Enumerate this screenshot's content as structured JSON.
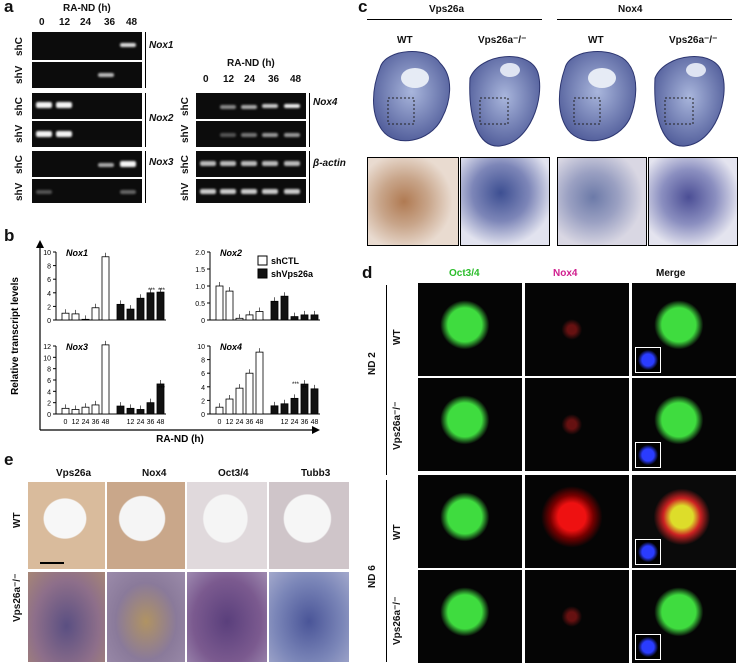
{
  "panel_a": {
    "label": "a",
    "condition": "RA-ND (h)",
    "timepoints": [
      "0",
      "12",
      "24",
      "36",
      "48"
    ],
    "rows": [
      "shC",
      "shV"
    ],
    "genes_left": [
      "Nox1",
      "Nox2",
      "Nox3"
    ],
    "genes_right": [
      "Nox4",
      "β-actin"
    ]
  },
  "panel_b": {
    "label": "b",
    "ylabel": "Relative transcript levels",
    "xlabel": "RA-ND (h)",
    "legend": [
      "shCTL",
      "shVps26a"
    ],
    "sig": "***",
    "sig2": "**"
  },
  "chart_data": [
    {
      "type": "bar",
      "title": "Nox1",
      "categories": [
        "0",
        "12",
        "24",
        "36",
        "48"
      ],
      "ylim": [
        0,
        10
      ],
      "yticks": [
        "0",
        "2",
        "4",
        "6",
        "8",
        "10"
      ],
      "series": [
        {
          "name": "shCTL",
          "values": [
            1.0,
            0.9,
            0.1,
            1.8,
            9.3
          ]
        },
        {
          "name": "shVps26a",
          "values": [
            2.3,
            1.6,
            3.2,
            4.0,
            4.1
          ]
        }
      ]
    },
    {
      "type": "bar",
      "title": "Nox2",
      "categories": [
        "0",
        "12",
        "24",
        "36",
        "48"
      ],
      "ylim": [
        0,
        2.0
      ],
      "yticks": [
        "0",
        "0.5",
        "1.0",
        "1.5",
        "2.0"
      ],
      "series": [
        {
          "name": "shCTL",
          "values": [
            1.0,
            0.85,
            0.05,
            0.15,
            0.25
          ]
        },
        {
          "name": "shVps26a",
          "values": [
            0.55,
            0.7,
            0.1,
            0.15,
            0.15
          ]
        }
      ]
    },
    {
      "type": "bar",
      "title": "Nox3",
      "categories": [
        "0",
        "12",
        "24",
        "36",
        "48"
      ],
      "ylim": [
        0,
        12
      ],
      "yticks": [
        "0",
        "2",
        "4",
        "6",
        "8",
        "10",
        "12"
      ],
      "series": [
        {
          "name": "shCTL",
          "values": [
            1.0,
            0.8,
            1.2,
            1.6,
            12.2
          ]
        },
        {
          "name": "shVps26a",
          "values": [
            1.4,
            1.0,
            0.8,
            2.0,
            5.3
          ]
        }
      ]
    },
    {
      "type": "bar",
      "title": "Nox4",
      "categories": [
        "0",
        "12",
        "24",
        "36",
        "48"
      ],
      "ylim": [
        0,
        10
      ],
      "yticks": [
        "0",
        "2",
        "4",
        "6",
        "8",
        "10"
      ],
      "series": [
        {
          "name": "shCTL",
          "values": [
            1.0,
            2.2,
            3.8,
            6.0,
            9.1
          ]
        },
        {
          "name": "shVps26a",
          "values": [
            1.2,
            1.5,
            2.3,
            4.4,
            3.7
          ]
        }
      ]
    }
  ],
  "panel_c": {
    "label": "c",
    "groups": [
      "Vps26a",
      "Nox4"
    ],
    "columns": [
      "WT",
      "Vps26a⁻/⁻",
      "WT",
      "Vps26a⁻/⁻"
    ]
  },
  "panel_d": {
    "label": "d",
    "columns": [
      "Oct3/4",
      "Nox4",
      "Merge"
    ],
    "days": [
      "ND 2",
      "ND 6"
    ],
    "rows": [
      "WT",
      "Vps26a⁻/⁻",
      "WT",
      "Vps26a⁻/⁻"
    ],
    "colors": {
      "oct": "#3fdc3f",
      "nox": "#e0189a",
      "merge": "#111"
    }
  },
  "panel_e": {
    "label": "e",
    "columns": [
      "Vps26a",
      "Nox4",
      "Oct3/4",
      "Tubb3"
    ],
    "rows": [
      "WT",
      "Vps26a⁻/⁻"
    ]
  }
}
